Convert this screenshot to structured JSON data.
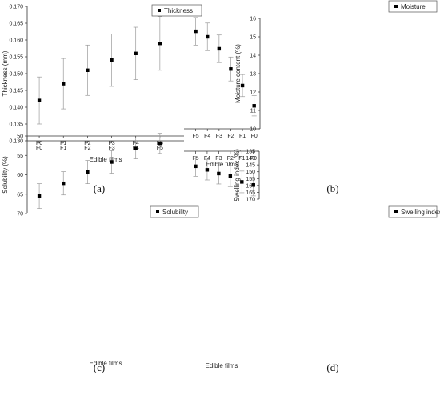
{
  "chart_data": [
    {
      "type": "scatter",
      "panel_label": "(a)",
      "categories": [
        "F0",
        "F1",
        "F2",
        "F3",
        "F4",
        "F5"
      ],
      "series": [
        {
          "name": "Thickness",
          "values": [
            0.142,
            0.147,
            0.151,
            0.154,
            0.156,
            0.159
          ],
          "errors": [
            0.007,
            0.0075,
            0.0075,
            0.0078,
            0.0078,
            0.008
          ]
        }
      ],
      "xlabel": "Edible films",
      "ylabel": "Thickness (mm)",
      "ylim": [
        0.13,
        0.17
      ],
      "yticks": [
        "0.130",
        "0.135",
        "0.140",
        "0.145",
        "0.150",
        "0.155",
        "0.160",
        "0.165",
        "0.170"
      ],
      "legend": "top-right",
      "grid": false
    },
    {
      "type": "scatter",
      "panel_label": "(b)",
      "categories": [
        "F0",
        "F1",
        "F2",
        "F3",
        "F4",
        "F5"
      ],
      "series": [
        {
          "name": "Moisture",
          "values": [
            11.25,
            12.35,
            13.25,
            14.35,
            15.0,
            15.3
          ],
          "errors": [
            0.55,
            0.6,
            0.65,
            0.75,
            0.75,
            0.75
          ]
        }
      ],
      "xlabel": "Edible films",
      "ylabel": "Moisture content (%)",
      "ylim": [
        10,
        16
      ],
      "yticks": [
        "10",
        "11",
        "12",
        "13",
        "14",
        "15",
        "16"
      ],
      "legend": "top-right",
      "grid": false
    },
    {
      "type": "scatter",
      "panel_label": "(c)",
      "categories": [
        "F0",
        "F1",
        "F2",
        "F3",
        "F4",
        "F5"
      ],
      "series": [
        {
          "name": "Solubility",
          "values": [
            65.5,
            62.2,
            59.3,
            56.7,
            53.2,
            51.9
          ],
          "errors": [
            3.2,
            3.0,
            3.0,
            2.9,
            2.7,
            2.6
          ]
        }
      ],
      "xlabel": "Edible films",
      "ylabel": "Solubility (%)",
      "ylim": [
        50,
        70
      ],
      "yticks": [
        "50",
        "55",
        "60",
        "65",
        "70"
      ],
      "legend": "top-right",
      "grid": false
    },
    {
      "type": "scatter",
      "panel_label": "(d)",
      "categories": [
        "F0",
        "F1",
        "F2",
        "F3",
        "F4",
        "F5"
      ],
      "series": [
        {
          "name": "Swelling index",
          "values": [
            159.6,
            157.4,
            153.1,
            151.3,
            148.6,
            146.0
          ],
          "errors": [
            8.0,
            7.9,
            7.7,
            7.6,
            7.4,
            7.3
          ]
        }
      ],
      "xlabel": "Edible films",
      "ylabel": "Swelling index (%)",
      "ylim": [
        135,
        170
      ],
      "yticks": [
        "135",
        "140",
        "145",
        "150",
        "155",
        "160",
        "165",
        "170"
      ],
      "legend": "top-right",
      "grid": false
    }
  ]
}
